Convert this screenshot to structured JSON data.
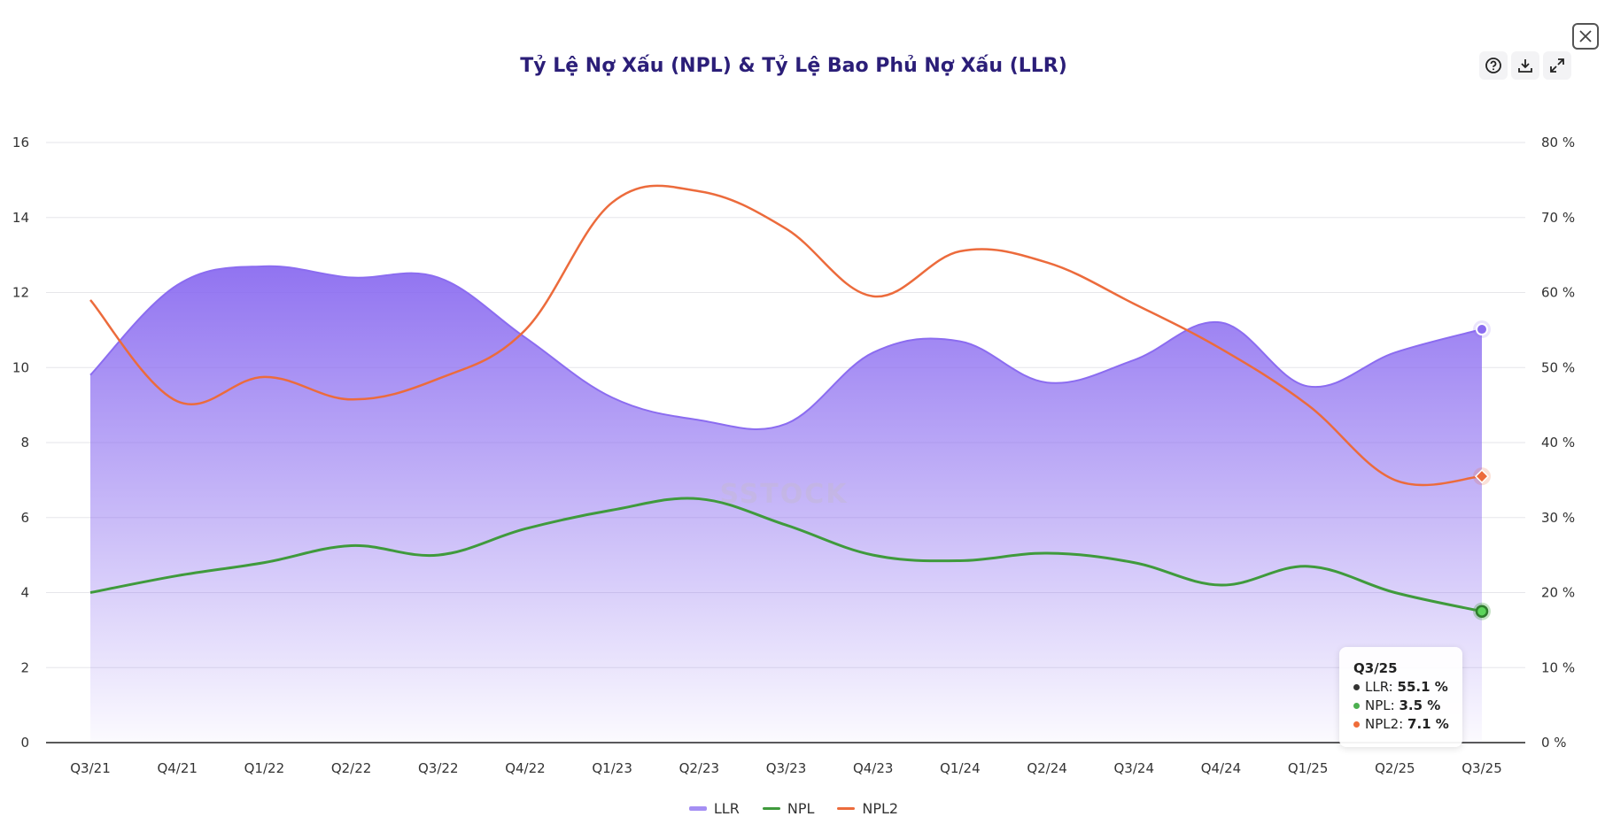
{
  "toolbar": {
    "help_icon": "question-circle-icon",
    "download_icon": "download-icon",
    "expand_icon": "expand-icon",
    "close_icon": "close-icon"
  },
  "watermark": "SSTOCK",
  "tooltip": {
    "header": "Q3/25",
    "rows": [
      {
        "label": "LLR:",
        "value": "55.1 %",
        "color": "#333333"
      },
      {
        "label": "NPL:",
        "value": "3.5 %",
        "color": "#4caf50"
      },
      {
        "label": "NPL2:",
        "value": "7.1 %",
        "color": "#ef6c3a"
      }
    ]
  },
  "chart_data": {
    "type": "line",
    "title": "Tỷ Lệ Nợ Xấu (NPL) & Tỷ Lệ Bao Phủ Nợ Xấu (LLR)",
    "categories": [
      "Q3/21",
      "Q4/21",
      "Q1/22",
      "Q2/22",
      "Q3/22",
      "Q4/22",
      "Q1/23",
      "Q2/23",
      "Q3/23",
      "Q4/23",
      "Q1/24",
      "Q2/24",
      "Q3/24",
      "Q4/24",
      "Q1/25",
      "Q2/25",
      "Q3/25"
    ],
    "left_axis": {
      "ylim": [
        0,
        16
      ],
      "ticks": [
        "0",
        "2",
        "4",
        "6",
        "8",
        "10",
        "12",
        "14",
        "16"
      ]
    },
    "right_axis": {
      "ylim": [
        0,
        80
      ],
      "ticks": [
        "0 %",
        "10 %",
        "20 %",
        "30 %",
        "40 %",
        "50 %",
        "60 %",
        "70 %",
        "80 %"
      ]
    },
    "grid": true,
    "legend_position": "bottom",
    "series": [
      {
        "name": "LLR",
        "type": "area",
        "axis": "right",
        "color": "#8b6cf0",
        "values": [
          49,
          61,
          63.5,
          62,
          62,
          54,
          46,
          43,
          42.5,
          52,
          53.5,
          48,
          51,
          56,
          47.5,
          52,
          55.1
        ]
      },
      {
        "name": "NPL",
        "type": "line",
        "axis": "left",
        "color": "#3f9a3c",
        "values": [
          4.0,
          4.45,
          4.8,
          5.25,
          5.0,
          5.7,
          6.2,
          6.5,
          5.8,
          5.0,
          4.85,
          5.05,
          4.8,
          4.2,
          4.7,
          4.0,
          3.5
        ]
      },
      {
        "name": "NPL2",
        "type": "line",
        "axis": "left",
        "color": "#ec6b3c",
        "values": [
          11.8,
          9.1,
          9.75,
          9.15,
          9.7,
          11.0,
          14.4,
          14.7,
          13.7,
          11.9,
          13.1,
          12.8,
          11.7,
          10.5,
          9.0,
          7.0,
          7.1
        ]
      }
    ]
  }
}
